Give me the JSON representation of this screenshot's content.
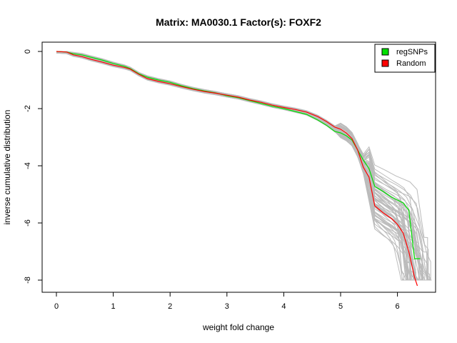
{
  "chart_data": {
    "type": "line",
    "title": "Matrix: MA0030.1 Factor(s): FOXF2",
    "xlabel": "weight fold change",
    "ylabel": "inverse cumulative distribution",
    "xlim": [
      -0.2,
      6.6
    ],
    "ylim": [
      -8.2,
      0.2
    ],
    "xticks": [
      "0",
      "1",
      "2",
      "3",
      "4",
      "5",
      "6"
    ],
    "yticks": [
      "0",
      "-2",
      "-4",
      "-6",
      "-8"
    ],
    "grid": false,
    "legend": {
      "position": "top-right",
      "entries": [
        {
          "label": "regSNPs",
          "color": "#00e000"
        },
        {
          "label": "Random",
          "color": "#ff0000"
        }
      ]
    },
    "background_color": "#bbbbbb",
    "background_count": 60,
    "series": [
      {
        "name": "regSNPs",
        "color": "#00e000",
        "x": [
          0,
          0.18,
          0.3,
          0.45,
          0.6,
          0.8,
          1.0,
          1.2,
          1.3,
          1.45,
          1.6,
          1.8,
          2.0,
          2.2,
          2.4,
          2.6,
          2.8,
          3.0,
          3.2,
          3.4,
          3.6,
          3.8,
          4.0,
          4.2,
          4.4,
          4.6,
          4.75,
          4.9,
          5.0,
          5.1,
          5.2,
          5.3,
          5.4,
          5.5,
          5.6,
          5.75,
          5.9,
          6.0,
          6.1,
          6.2,
          6.3,
          6.4
        ],
        "y": [
          0,
          -0.02,
          -0.08,
          -0.12,
          -0.2,
          -0.3,
          -0.42,
          -0.52,
          -0.6,
          -0.78,
          -0.9,
          -1.0,
          -1.08,
          -1.2,
          -1.3,
          -1.38,
          -1.45,
          -1.55,
          -1.62,
          -1.72,
          -1.82,
          -1.92,
          -2.0,
          -2.1,
          -2.2,
          -2.4,
          -2.58,
          -2.8,
          -2.85,
          -2.95,
          -3.1,
          -3.45,
          -3.8,
          -4.1,
          -4.72,
          -4.9,
          -5.1,
          -5.2,
          -5.3,
          -5.55,
          -7.25,
          -7.25
        ]
      },
      {
        "name": "Random",
        "color": "#ff0000",
        "x": [
          0,
          0.18,
          0.3,
          0.45,
          0.6,
          0.8,
          1.0,
          1.2,
          1.3,
          1.45,
          1.6,
          1.8,
          2.0,
          2.2,
          2.4,
          2.6,
          2.8,
          3.0,
          3.2,
          3.4,
          3.6,
          3.8,
          4.0,
          4.2,
          4.4,
          4.6,
          4.75,
          4.9,
          5.0,
          5.1,
          5.2,
          5.3,
          5.4,
          5.5,
          5.6,
          5.75,
          5.9,
          6.0,
          6.1,
          6.2,
          6.3,
          6.35
        ],
        "y": [
          0,
          -0.02,
          -0.12,
          -0.18,
          -0.27,
          -0.37,
          -0.48,
          -0.56,
          -0.62,
          -0.8,
          -0.95,
          -1.05,
          -1.13,
          -1.23,
          -1.32,
          -1.4,
          -1.46,
          -1.53,
          -1.6,
          -1.7,
          -1.78,
          -1.88,
          -1.96,
          -2.03,
          -2.12,
          -2.28,
          -2.45,
          -2.65,
          -2.72,
          -2.85,
          -3.05,
          -3.45,
          -4.05,
          -4.4,
          -5.4,
          -5.65,
          -5.85,
          -6.05,
          -6.35,
          -7.0,
          -7.9,
          -8.2
        ]
      }
    ]
  }
}
